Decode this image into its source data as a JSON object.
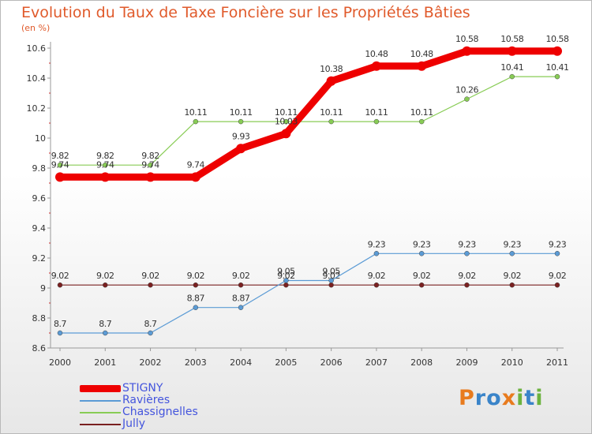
{
  "title": "Evolution du Taux de Taxe Foncière sur les Propriétés Bâties",
  "unit_label": "(en %)",
  "logo": {
    "text": "Proxiti",
    "letters": [
      "P",
      "r",
      "o",
      "x",
      "i",
      "t",
      "i"
    ],
    "colors": [
      "#e87b1e",
      "#3a84c9",
      "#3a84c9",
      "#e87b1e",
      "#6cb33f",
      "#3a84c9",
      "#6cb33f"
    ]
  },
  "chart_data": {
    "type": "line",
    "x": [
      2000,
      2001,
      2002,
      2003,
      2004,
      2005,
      2006,
      2007,
      2008,
      2009,
      2010,
      2011
    ],
    "ylim": [
      8.6,
      10.6
    ],
    "yticks": [
      "8.6",
      "8.8",
      "9",
      "9.2",
      "9.4",
      "9.6",
      "9.8",
      "10",
      "10.2",
      "10.4",
      "10.6"
    ],
    "grid": false,
    "legend_position": "bottom-left",
    "series": [
      {
        "name": "STIGNY",
        "color": "#ee0000",
        "values": [
          9.74,
          9.74,
          9.74,
          9.74,
          9.93,
          10.03,
          10.38,
          10.48,
          10.48,
          10.58,
          10.58,
          10.58
        ],
        "labels": [
          "9.74",
          "9.74",
          "9.74",
          "9.74",
          "9.93",
          "10.03",
          "10.38",
          "10.48",
          "10.48",
          "10.58",
          "10.58",
          "10.58"
        ]
      },
      {
        "name": "Ravières",
        "color": "#5b9bd5",
        "values": [
          8.7,
          8.7,
          8.7,
          8.87,
          8.87,
          9.05,
          9.05,
          9.23,
          9.23,
          9.23,
          9.23,
          9.23
        ],
        "labels": [
          "8.7",
          "8.7",
          "8.7",
          "8.87",
          "8.87",
          "9.05",
          "9.05",
          "9.23",
          "9.23",
          "9.23",
          "9.23",
          "9.23"
        ]
      },
      {
        "name": "Chassignelles",
        "color": "#88cc55",
        "values": [
          9.82,
          9.82,
          9.82,
          10.11,
          10.11,
          10.11,
          10.11,
          10.11,
          10.11,
          10.26,
          10.41,
          10.41
        ],
        "labels": [
          "9.82",
          "9.82",
          "9.82",
          "10.11",
          "10.11",
          "10.11",
          "10.11",
          "10.11",
          "10.11",
          "10.26",
          "10.41",
          "10.41"
        ]
      },
      {
        "name": "Jully",
        "color": "#7a2020",
        "values": [
          9.02,
          9.02,
          9.02,
          9.02,
          9.02,
          9.02,
          9.02,
          9.02,
          9.02,
          9.02,
          9.02,
          9.02
        ],
        "labels": [
          "9.02",
          "9.02",
          "9.02",
          "9.02",
          "9.02",
          "9.02",
          "9.02",
          "9.02",
          "9.02",
          "9.02",
          "9.02",
          "9.02"
        ]
      }
    ]
  }
}
